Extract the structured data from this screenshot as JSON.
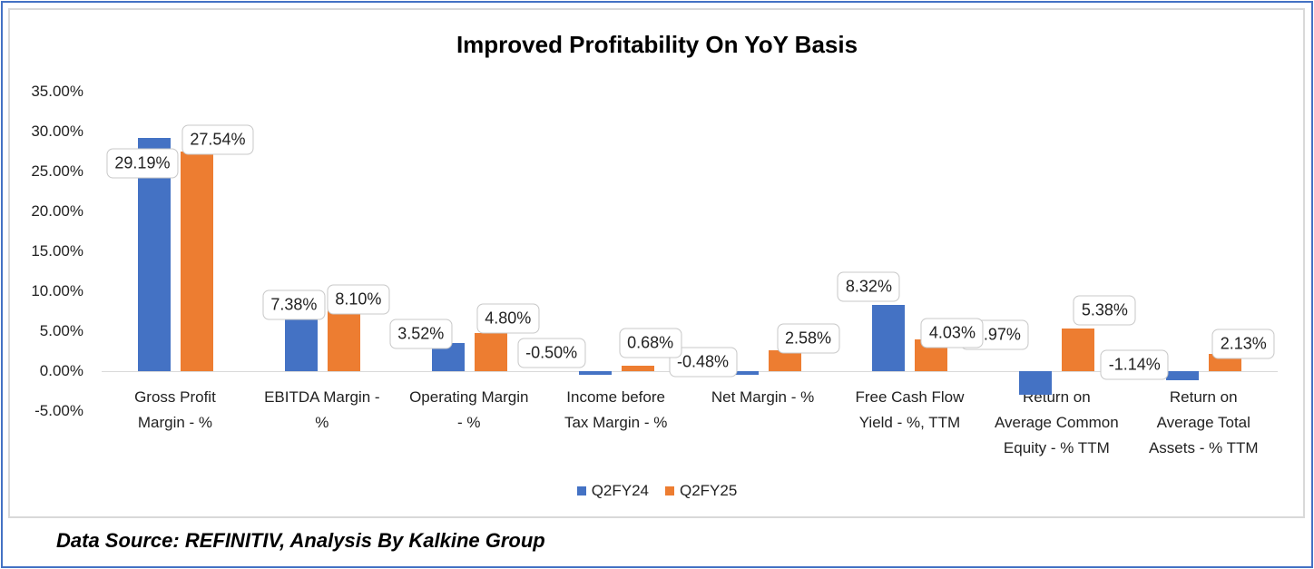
{
  "chart_data": {
    "type": "bar",
    "title": "Improved Profitability On YoY Basis",
    "categories": [
      "Gross Profit\nMargin - %",
      "EBITDA Margin -\n%",
      "Operating Margin\n- %",
      "Income before\nTax Margin - %",
      "Net Margin - %",
      "Free Cash Flow\nYield - %, TTM",
      "Return on\nAverage Common\nEquity - %  TTM",
      "Return on\nAverage Total\nAssets - % TTM"
    ],
    "series": [
      {
        "name": "Q2FY24",
        "color": "#4472c4",
        "values": [
          29.19,
          7.38,
          3.52,
          -0.5,
          -0.48,
          8.32,
          -2.97,
          -1.14
        ],
        "labels": [
          "29.19%",
          "7.38%",
          "3.52%",
          "-0.50%",
          "-0.48%",
          "8.32%",
          "-2.97%",
          "-1.14%"
        ]
      },
      {
        "name": "Q2FY25",
        "color": "#ed7d31",
        "values": [
          27.54,
          8.1,
          4.8,
          0.68,
          2.58,
          4.03,
          5.38,
          2.13
        ],
        "labels": [
          "27.54%",
          "8.10%",
          "4.80%",
          "0.68%",
          "2.58%",
          "4.03%",
          "5.38%",
          "2.13%"
        ]
      }
    ],
    "yticks": [
      "35.00%",
      "30.00%",
      "25.00%",
      "20.00%",
      "15.00%",
      "10.00%",
      "5.00%",
      "0.00%",
      "-5.00%"
    ],
    "ylim": [
      -5,
      35
    ],
    "legend_position": "bottom"
  },
  "footnote": "Data Source: REFINITIV, Analysis By Kalkine Group"
}
